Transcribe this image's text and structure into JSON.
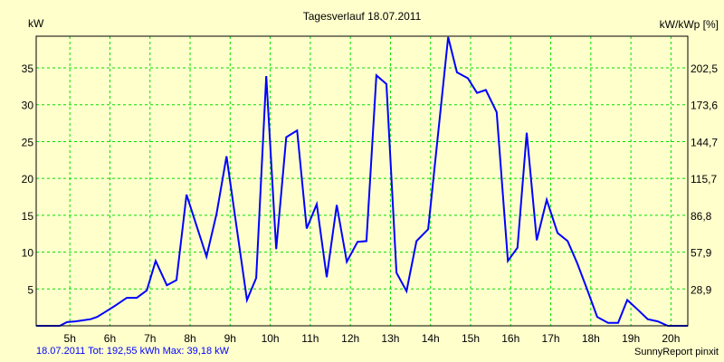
{
  "chart_data": {
    "type": "line",
    "title": "Tagesverlauf 18.07.2011",
    "ylabel": "kW",
    "y2label": "kW/kWp [%]",
    "xlim": [
      4.16,
      20.42
    ],
    "ylim": [
      0,
      39.3
    ],
    "grid": true,
    "x_ticks": [
      5,
      6,
      7,
      8,
      9,
      10,
      11,
      12,
      13,
      14,
      15,
      16,
      17,
      18,
      19,
      20
    ],
    "x_tick_labels": [
      "5h",
      "6h",
      "7h",
      "8h",
      "9h",
      "10h",
      "11h",
      "12h",
      "13h",
      "14h",
      "15h",
      "16h",
      "17h",
      "18h",
      "19h",
      "20h"
    ],
    "y_ticks": [
      5,
      10,
      15,
      20,
      25,
      30,
      35
    ],
    "y_tick_labels": [
      "5",
      "10",
      "15",
      "20",
      "25",
      "30",
      "35"
    ],
    "y2_tick_labels": [
      "28,9",
      "57,9",
      "86,8",
      "115,7",
      "144,7",
      "173,6",
      "202,5"
    ],
    "series": [
      {
        "name": "kW",
        "color": "#0000FF",
        "points": [
          [
            4.16,
            0
          ],
          [
            4.75,
            0
          ],
          [
            4.93,
            0.5
          ],
          [
            5.14,
            0.6
          ],
          [
            5.52,
            0.9
          ],
          [
            5.68,
            1.2
          ],
          [
            5.86,
            1.8
          ],
          [
            6.15,
            2.8
          ],
          [
            6.42,
            3.8
          ],
          [
            6.67,
            3.8
          ],
          [
            6.92,
            4.8
          ],
          [
            7.14,
            8.8
          ],
          [
            7.42,
            5.5
          ],
          [
            7.66,
            6.2
          ],
          [
            7.91,
            17.8
          ],
          [
            8.41,
            9.4
          ],
          [
            8.66,
            15.2
          ],
          [
            8.91,
            23
          ],
          [
            9.42,
            3.5
          ],
          [
            9.65,
            6.5
          ],
          [
            9.9,
            33.9
          ],
          [
            10.15,
            10.4
          ],
          [
            10.4,
            25.6
          ],
          [
            10.67,
            26.5
          ],
          [
            10.91,
            13.2
          ],
          [
            11.16,
            16.5
          ],
          [
            11.41,
            6.6
          ],
          [
            11.66,
            16.4
          ],
          [
            11.91,
            8.7
          ],
          [
            12.18,
            11.4
          ],
          [
            12.4,
            11.5
          ],
          [
            12.65,
            34.0
          ],
          [
            12.9,
            32.8
          ],
          [
            13.15,
            7.2
          ],
          [
            13.4,
            4.7
          ],
          [
            13.65,
            11.5
          ],
          [
            13.94,
            13.1
          ],
          [
            14.44,
            39.18
          ],
          [
            14.66,
            34.4
          ],
          [
            14.93,
            33.6
          ],
          [
            15.16,
            31.6
          ],
          [
            15.38,
            32.0
          ],
          [
            15.65,
            29.0
          ],
          [
            15.93,
            8.8
          ],
          [
            16.17,
            10.6
          ],
          [
            16.4,
            26.2
          ],
          [
            16.65,
            11.6
          ],
          [
            16.9,
            17.1
          ],
          [
            17.17,
            12.6
          ],
          [
            17.42,
            11.5
          ],
          [
            17.66,
            8.5
          ],
          [
            17.91,
            4.9
          ],
          [
            18.16,
            1.2
          ],
          [
            18.43,
            0.4
          ],
          [
            18.68,
            0.4
          ],
          [
            18.91,
            3.5
          ],
          [
            19.15,
            2.3
          ],
          [
            19.42,
            0.9
          ],
          [
            19.67,
            0.6
          ],
          [
            19.92,
            0
          ],
          [
            20.42,
            0
          ]
        ]
      }
    ],
    "footer_left": "18.07.2011 Tot: 192,55 kWh Max: 39,18 kW",
    "footer_right": "SunnyReport pinxit"
  },
  "colors": {
    "background": "#FFFFCC",
    "grid": "#00E000",
    "line": "#0000FF"
  }
}
